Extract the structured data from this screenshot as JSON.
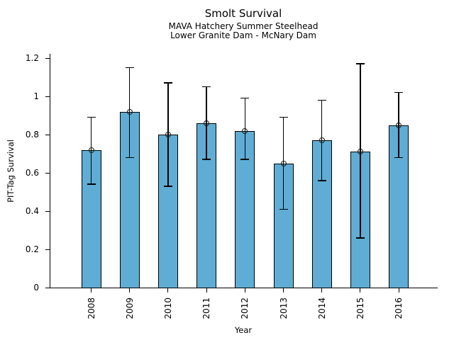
{
  "chart_data": {
    "type": "bar",
    "title": "Smolt Survival",
    "subtitle1": "MAVA Hatchery Summer Steelhead",
    "subtitle2": "Lower Granite Dam - McNary Dam",
    "xlabel": "Year",
    "ylabel": "PIT-Tag Survival",
    "categories": [
      "2008",
      "2009",
      "2010",
      "2011",
      "2012",
      "2013",
      "2014",
      "2015",
      "2016"
    ],
    "values": [
      0.72,
      0.92,
      0.8,
      0.86,
      0.82,
      0.65,
      0.77,
      0.71,
      0.85
    ],
    "error_low": [
      0.54,
      0.68,
      0.53,
      0.67,
      0.67,
      0.41,
      0.56,
      0.26,
      0.68
    ],
    "error_high": [
      0.89,
      1.15,
      1.07,
      1.05,
      0.99,
      0.89,
      0.98,
      1.17,
      1.02
    ],
    "yticks": [
      0,
      0.2,
      0.4,
      0.6,
      0.8,
      1,
      1.2
    ],
    "ytick_labels": [
      "0",
      "0.2",
      "0.4",
      "0.6",
      "0.8",
      "1",
      "1.2"
    ],
    "ylim": [
      0,
      1.22
    ],
    "grid": false,
    "legend": "none",
    "marker": "open-circle",
    "bar_color": "#5FADD4",
    "bar_edge_color": "#000000",
    "error_bar_color": "#000000"
  }
}
